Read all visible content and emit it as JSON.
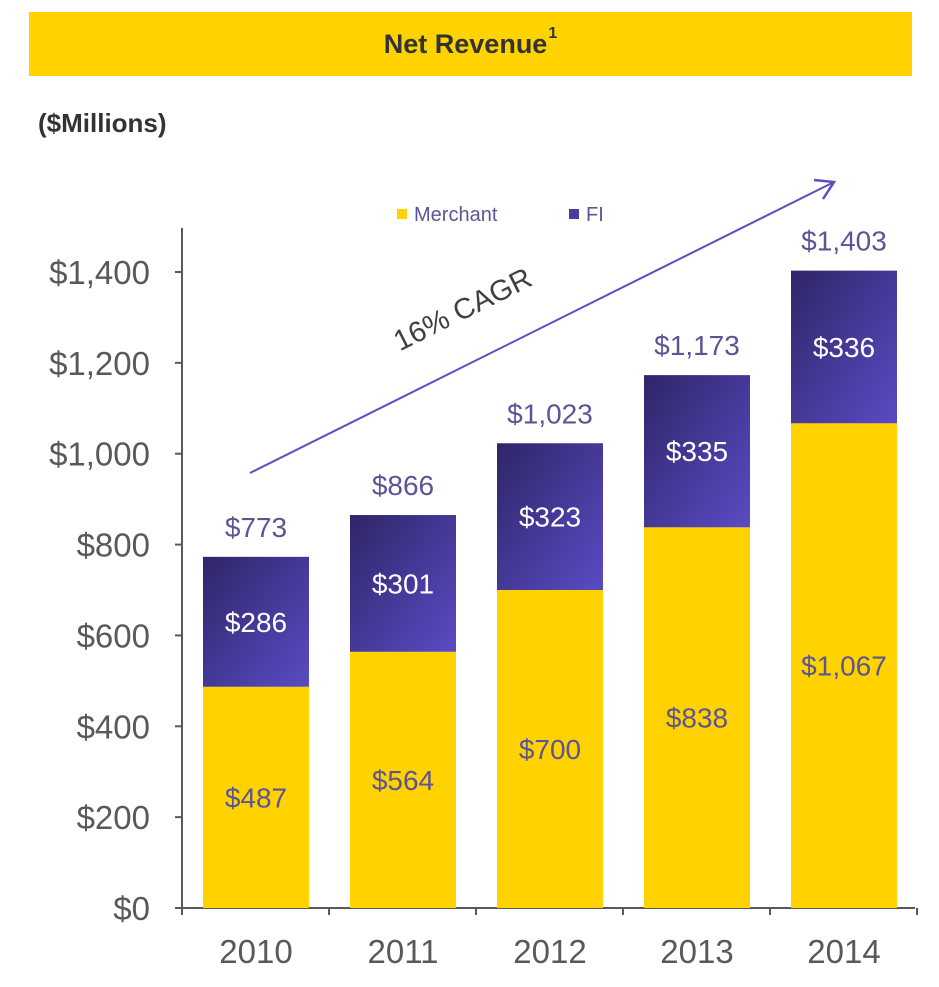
{
  "header": {
    "title": "Net Revenue",
    "title_sup": "1",
    "units": "($Millions)",
    "bar_color": "#FFD200"
  },
  "chart_data": {
    "type": "bar",
    "stacked": true,
    "title": "Net Revenue¹",
    "ylabel": "($Millions)",
    "xlabel": "",
    "categories": [
      "2010",
      "2011",
      "2012",
      "2013",
      "2014"
    ],
    "series": [
      {
        "name": "Merchant",
        "values": [
          487,
          564,
          700,
          838,
          1067
        ],
        "labels": [
          "$487",
          "$564",
          "$700",
          "$838",
          "$1,067"
        ],
        "color": "#FFD200",
        "label_color": "#5B5596"
      },
      {
        "name": "FI",
        "values": [
          286,
          301,
          323,
          335,
          336
        ],
        "labels": [
          "$286",
          "$301",
          "$323",
          "$335",
          "$336"
        ],
        "color": "#4A3C9C",
        "label_color": "#FFFFFF"
      }
    ],
    "totals": [
      773,
      866,
      1023,
      1173,
      1403
    ],
    "total_labels": [
      "$773",
      "$866",
      "$1,023",
      "$1,173",
      "$1,403"
    ],
    "ylim": [
      0,
      1400
    ],
    "yticks": [
      0,
      200,
      400,
      600,
      800,
      1000,
      1200,
      1400
    ],
    "ytick_labels": [
      "$0",
      "$200",
      "$400",
      "$600",
      "$800",
      "$1,000",
      "$1,200",
      "$1,400"
    ],
    "grid": false,
    "legend_position": "top",
    "annotation": {
      "text": "16% CAGR",
      "arrow_color": "#5B4FBF"
    }
  }
}
